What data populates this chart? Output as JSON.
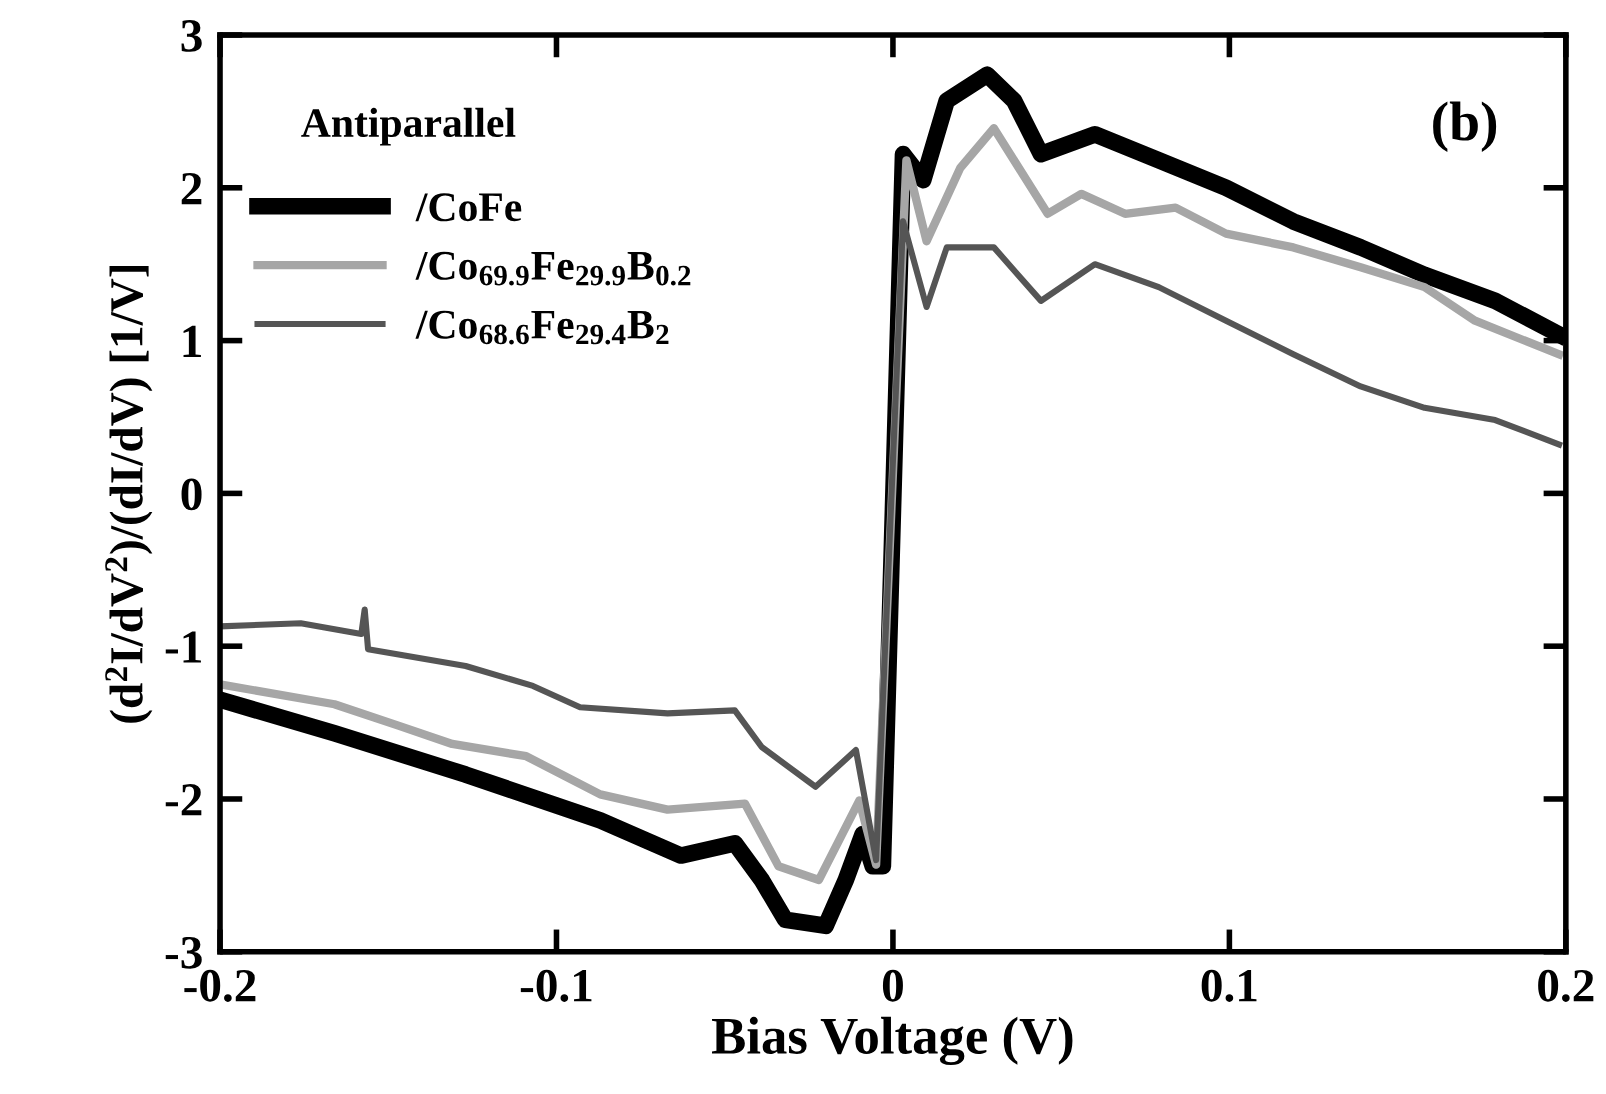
{
  "chart_data": {
    "type": "line",
    "xlabel": "Bias Voltage (V)",
    "ylabel": "(d$^{2}$I/dV$^{2}$)/(dI/dV) [1/V]",
    "annotations": [
      "Antiparallel",
      "(b)"
    ],
    "xlim": [
      -0.2,
      0.2
    ],
    "xticks": [
      -0.2,
      -0.1,
      0,
      0.1,
      0.2
    ],
    "ylim": [
      -3,
      3
    ],
    "yticks": [
      -3,
      -2,
      -1,
      0,
      1,
      2,
      3
    ],
    "grid": false,
    "legend": "top left",
    "series": [
      {
        "name": "/CoFe",
        "color": "#000000",
        "x": [
          -0.2,
          -0.166,
          -0.127,
          -0.087,
          -0.063,
          -0.047,
          -0.039,
          -0.032,
          -0.02,
          -0.014,
          -0.009,
          -0.006,
          -0.003,
          0.003,
          0.009,
          0.016,
          0.028,
          0.036,
          0.044,
          0.06,
          0.079,
          0.099,
          0.119,
          0.139,
          0.158,
          0.179,
          0.198
        ],
        "values": [
          -1.35,
          -1.57,
          -1.84,
          -2.14,
          -2.37,
          -2.29,
          -2.53,
          -2.79,
          -2.83,
          -2.53,
          -2.23,
          -2.44,
          -2.44,
          2.22,
          2.05,
          2.57,
          2.74,
          2.57,
          2.22,
          2.35,
          2.18,
          2.0,
          1.78,
          1.61,
          1.43,
          1.26,
          1.04
        ]
      },
      {
        "name": "/Co$_{69.9}$Fe$_{29.9}$B$_{0.2}$",
        "color": "#a6a6a6",
        "x": [
          -0.2,
          -0.166,
          -0.147,
          -0.131,
          -0.109,
          -0.087,
          -0.067,
          -0.044,
          -0.034,
          -0.022,
          -0.01,
          -0.005,
          0.004,
          0.01,
          0.02,
          0.03,
          0.046,
          0.056,
          0.069,
          0.084,
          0.099,
          0.119,
          0.139,
          0.158,
          0.173,
          0.198
        ],
        "values": [
          -1.25,
          -1.38,
          -1.52,
          -1.64,
          -1.72,
          -1.97,
          -2.07,
          -2.03,
          -2.44,
          -2.53,
          -2.01,
          -2.43,
          2.18,
          1.65,
          2.13,
          2.39,
          1.83,
          1.96,
          1.83,
          1.87,
          1.7,
          1.61,
          1.48,
          1.35,
          1.13,
          0.91
        ]
      },
      {
        "name": "/Co$_{68.6}$Fe$_{29.4}$B$_{2}$",
        "color": "#555555",
        "x": [
          -0.2,
          -0.176,
          -0.158,
          -0.157,
          -0.156,
          -0.127,
          -0.107,
          -0.093,
          -0.067,
          -0.047,
          -0.039,
          -0.023,
          -0.011,
          -0.005,
          0.003,
          0.01,
          0.016,
          0.03,
          0.044,
          0.06,
          0.079,
          0.099,
          0.119,
          0.139,
          0.158,
          0.179,
          0.198
        ],
        "values": [
          -0.87,
          -0.85,
          -0.92,
          -0.76,
          -1.02,
          -1.13,
          -1.26,
          -1.4,
          -1.44,
          -1.42,
          -1.66,
          -1.92,
          -1.68,
          -2.4,
          1.78,
          1.22,
          1.61,
          1.61,
          1.26,
          1.5,
          1.35,
          1.13,
          0.91,
          0.7,
          0.56,
          0.48,
          0.32
        ]
      }
    ]
  }
}
